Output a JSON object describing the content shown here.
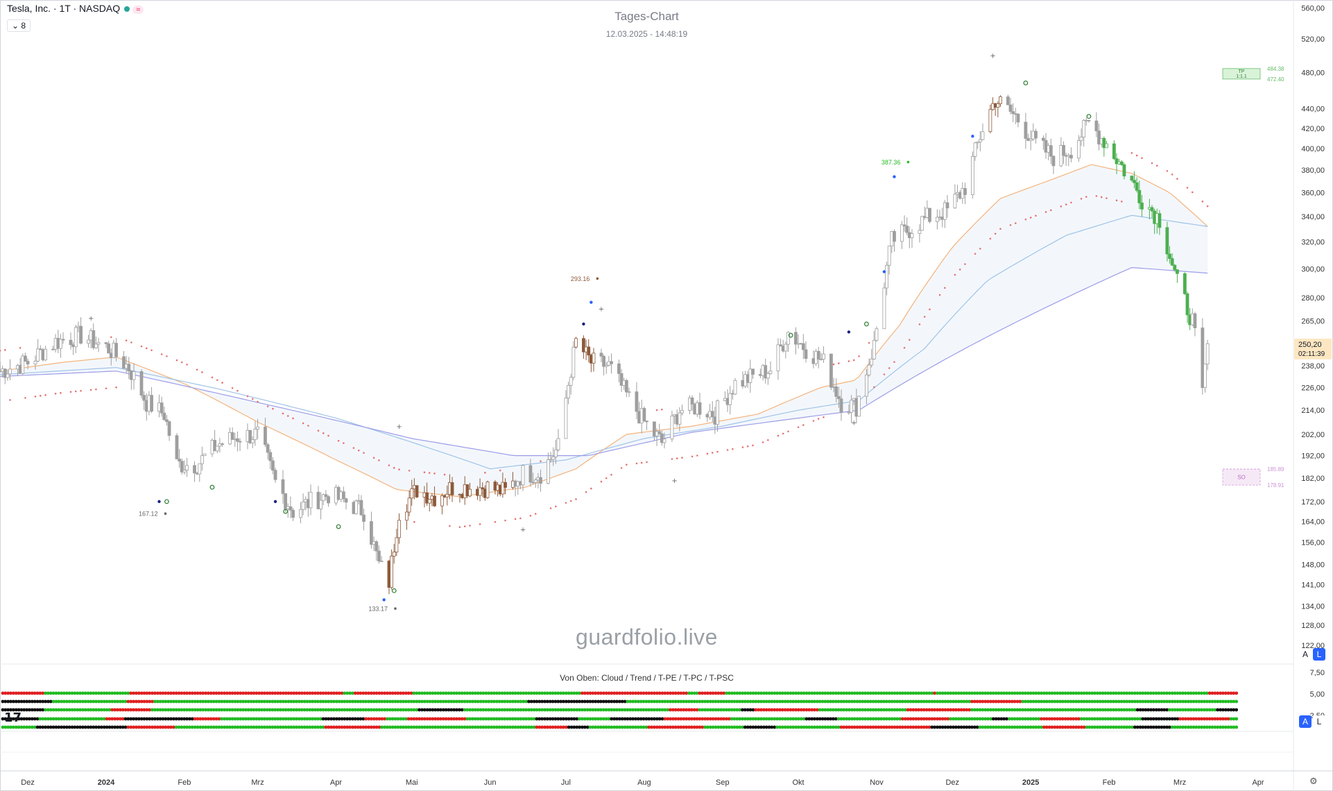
{
  "header": {
    "symbol": "Tesla, Inc. · 1T · NASDAQ",
    "badge": "≈",
    "indicator_count": "8"
  },
  "title": "Tages-Chart",
  "subtitle": "12.03.2025 - 14:48:19",
  "watermark": "guardfolio.live",
  "panel_title": "Von Oben: Cloud / Trend / T-PE / T-PC / T-PSC",
  "logo": "17",
  "scale_buttons": {
    "a": "A",
    "l": "L"
  },
  "colors": {
    "candle_neutral": "#9e9e9e",
    "candle_up_highlight": "#4caf50",
    "candle_down_highlight": "#8d5a3b",
    "candle_red": "#c62828",
    "ema_fast": "#f5b37b",
    "ema_mid": "#9fc3e6",
    "ema_slow": "#9c9ce8",
    "trail_dots": "#e57373",
    "dot_green": "#22bb22",
    "dot_red": "#e02020",
    "dot_black": "#111111"
  },
  "chart_data": {
    "type": "candlestick",
    "title": "Tages-Chart",
    "subtitle": "12.03.2025 - 14:48:19",
    "y_axis_labels": [
      "560,00",
      "520,00",
      "480,00",
      "440,00",
      "420,00",
      "400,00",
      "380,00",
      "360,00",
      "340,00",
      "320,00",
      "300,00",
      "280,00",
      "265,00",
      "238,00",
      "226,00",
      "214,00",
      "202,00",
      "192,00",
      "182,00",
      "172,00",
      "164,00",
      "156,00",
      "148,00",
      "141,00",
      "134,00",
      "128,00",
      "122,00"
    ],
    "x_axis_labels": [
      "Dez",
      "2024",
      "Feb",
      "Mrz",
      "Apr",
      "Mai",
      "Jun",
      "Jul",
      "Aug",
      "Sep",
      "Okt",
      "Nov",
      "Dez",
      "2025",
      "Feb",
      "Mrz",
      "Apr"
    ],
    "ylim": [
      118,
      565
    ],
    "x_range": [
      "2023-11-20",
      "2025-04-15"
    ],
    "price_scale": "log",
    "last_price": {
      "value": "250,20",
      "countdown": "02:11:39"
    },
    "annotations": [
      {
        "label": "167.12",
        "date": "2024-01-22",
        "value": 167.12
      },
      {
        "label": "133.17",
        "date": "2024-04-22",
        "value": 133.17
      },
      {
        "label": "293.16",
        "date": "2024-07-11",
        "value": 293.16
      },
      {
        "label": "387.36",
        "date": "2024-11-11",
        "value": 387.36
      }
    ],
    "zone_tp": {
      "label": "TP",
      "sub": "1:1.1",
      "upper": "484.38",
      "lower": "472.40"
    },
    "zone_sl": {
      "label": "SO",
      "upper": "185.89",
      "lower": "178.91"
    },
    "subpanel": {
      "y_axis_labels": [
        "7,50",
        "5,00",
        "2,50"
      ],
      "rows": [
        {
          "name": "Cloud",
          "segments": [
            [
              "r",
              16
            ],
            [
              "g",
              32
            ],
            [
              "r",
              80
            ],
            [
              "g",
              4
            ],
            [
              "r",
              22
            ],
            [
              "g",
              63
            ],
            [
              "r",
              40
            ],
            [
              "g",
              4
            ],
            [
              "r",
              10
            ],
            [
              "g",
              78
            ],
            [
              "r",
              1
            ],
            [
              "g",
              102
            ],
            [
              "r",
              24
            ],
            [
              "g",
              6
            ],
            [
              "r",
              13
            ]
          ]
        },
        {
          "name": "Trend",
          "segments": [
            [
              "k",
              19
            ],
            [
              "g",
              28
            ],
            [
              "r",
              10
            ],
            [
              "g",
              140
            ],
            [
              "k",
              37
            ],
            [
              "g",
              46
            ],
            [
              "g",
              83
            ],
            [
              "r",
              19
            ],
            [
              "g",
              86
            ],
            [
              "r",
              1
            ],
            [
              "r",
              0
            ],
            [
              "g",
              2
            ],
            [
              "r",
              0
            ]
          ]
        },
        {
          "name": "T-PE",
          "segments": [
            [
              "k",
              16
            ],
            [
              "g",
              25
            ],
            [
              "r",
              15
            ],
            [
              "g",
              100
            ],
            [
              "k",
              17
            ],
            [
              "g",
              77
            ],
            [
              "r",
              11
            ],
            [
              "g",
              16
            ],
            [
              "k",
              5
            ],
            [
              "r",
              24
            ],
            [
              "g",
              33
            ],
            [
              "r",
              24
            ],
            [
              "g",
              62
            ],
            [
              "k",
              12
            ],
            [
              "g",
              18
            ],
            [
              "k",
              23
            ],
            [
              "g",
              22
            ],
            [
              "k",
              25
            ],
            [
              "g",
              27
            ],
            [
              "k",
              13
            ],
            [
              "g",
              25
            ],
            [
              "k",
              29
            ],
            [
              "r",
              10
            ]
          ]
        },
        {
          "name": "T-PC",
          "segments": [
            [
              "k",
              14
            ],
            [
              "g",
              25
            ],
            [
              "r",
              7
            ],
            [
              "k",
              26
            ],
            [
              "r",
              10
            ],
            [
              "g",
              38
            ],
            [
              "k",
              16
            ],
            [
              "r",
              8
            ],
            [
              "g",
              8
            ],
            [
              "r",
              22
            ],
            [
              "g",
              26
            ],
            [
              "k",
              16
            ],
            [
              "g",
              12
            ],
            [
              "k",
              20
            ],
            [
              "r",
              25
            ],
            [
              "g",
              28
            ],
            [
              "k",
              12
            ],
            [
              "g",
              24
            ],
            [
              "r",
              18
            ],
            [
              "g",
              16
            ],
            [
              "k",
              6
            ],
            [
              "g",
              12
            ],
            [
              "r",
              15
            ],
            [
              "g",
              23
            ],
            [
              "k",
              14
            ],
            [
              "r",
              19
            ],
            [
              "g",
              30
            ],
            [
              "r",
              11
            ],
            [
              "k",
              12
            ],
            [
              "g",
              6
            ],
            [
              "r",
              11
            ]
          ]
        },
        {
          "name": "T-PSC",
          "segments": [
            [
              "g",
              13
            ],
            [
              "k",
              34
            ],
            [
              "r",
              18
            ],
            [
              "g",
              56
            ],
            [
              "r",
              21
            ],
            [
              "g",
              58
            ],
            [
              "r",
              12
            ],
            [
              "k",
              8
            ],
            [
              "g",
              22
            ],
            [
              "r",
              21
            ],
            [
              "g",
              15
            ],
            [
              "k",
              12
            ],
            [
              "g",
              24
            ],
            [
              "r",
              34
            ],
            [
              "k",
              18
            ],
            [
              "g",
              24
            ],
            [
              "r",
              16
            ],
            [
              "g",
              18
            ],
            [
              "k",
              14
            ],
            [
              "g",
              28
            ],
            [
              "r",
              17
            ],
            [
              "k",
              12
            ],
            [
              "g",
              20
            ],
            [
              "r",
              24
            ],
            [
              "g",
              29
            ],
            [
              "k",
              12
            ],
            [
              "r",
              18
            ]
          ]
        }
      ]
    },
    "series": [
      {
        "name": "",
        "ohlc_dates": [
          "2023-11-20",
          "2023-12-01",
          "2023-12-12",
          "2023-12-22",
          "2024-01-02",
          "2024-01-10",
          "2024-01-17",
          "2024-01-24",
          "2024-01-29",
          "2024-02-06",
          "2024-02-14",
          "2024-02-22",
          "2024-03-01",
          "2024-03-08",
          "2024-03-15",
          "2024-03-22",
          "2024-03-29",
          "2024-04-05",
          "2024-04-12",
          "2024-04-18",
          "2024-04-22",
          "2024-04-26",
          "2024-05-03",
          "2024-05-10",
          "2024-05-17",
          "2024-05-24",
          "2024-05-31",
          "2024-06-07",
          "2024-06-14",
          "2024-06-21",
          "2024-06-28",
          "2024-07-05",
          "2024-07-11",
          "2024-07-18",
          "2024-07-25",
          "2024-08-01",
          "2024-08-08",
          "2024-08-15",
          "2024-08-22",
          "2024-08-29",
          "2024-09-06",
          "2024-09-13",
          "2024-09-20",
          "2024-09-27",
          "2024-10-04",
          "2024-10-11",
          "2024-10-18",
          "2024-10-24",
          "2024-10-31",
          "2024-11-07",
          "2024-11-14",
          "2024-11-21",
          "2024-11-29",
          "2024-12-06",
          "2024-12-13",
          "2024-12-18",
          "2024-12-26",
          "2025-01-03",
          "2025-01-10",
          "2025-01-17",
          "2025-01-24",
          "2025-01-31",
          "2025-02-07",
          "2025-02-14",
          "2025-02-21",
          "2025-02-28",
          "2025-03-06",
          "2025-03-10",
          "2025-03-12"
        ],
        "close": [
          235,
          240,
          252,
          256,
          248,
          237,
          218,
          212,
          188,
          188,
          197,
          201,
          202,
          180,
          168,
          172,
          175,
          172,
          168,
          148,
          142,
          168,
          177,
          174,
          178,
          178,
          178,
          176,
          184,
          184,
          196,
          252,
          240,
          238,
          222,
          208,
          198,
          214,
          216,
          212,
          228,
          232,
          236,
          258,
          248,
          240,
          218,
          216,
          250,
          321,
          330,
          339,
          345,
          365,
          420,
          450,
          432,
          405,
          392,
          400,
          425,
          405,
          380,
          355,
          338,
          290,
          265,
          222,
          250
        ]
      }
    ],
    "overlays": [
      {
        "name": "",
        "dates": [
          "2023-11-20",
          "2023-12-15",
          "2024-01-05",
          "2024-02-01",
          "2024-03-01",
          "2024-04-01",
          "2024-04-25",
          "2024-05-20",
          "2024-06-15",
          "2024-07-05",
          "2024-07-25",
          "2024-08-20",
          "2024-09-15",
          "2024-10-10",
          "2024-10-24",
          "2024-11-10",
          "2024-12-01",
          "2024-12-20",
          "2025-01-10",
          "2025-01-25",
          "2025-02-10",
          "2025-02-25",
          "2025-03-12"
        ],
        "values": [
          235,
          240,
          243,
          228,
          208,
          190,
          177,
          174,
          178,
          186,
          202,
          206,
          212,
          226,
          230,
          262,
          316,
          355,
          372,
          385,
          377,
          360,
          332
        ]
      },
      {
        "name": "",
        "dates": [
          "2023-11-20",
          "2024-01-05",
          "2024-02-15",
          "2024-04-01",
          "2024-06-01",
          "2024-07-01",
          "2024-08-01",
          "2024-09-01",
          "2024-10-01",
          "2024-10-25",
          "2024-11-20",
          "2024-12-15",
          "2025-01-15",
          "2025-02-10",
          "2025-03-12"
        ],
        "values": [
          233,
          237,
          225,
          210,
          186,
          190,
          200,
          206,
          214,
          219,
          248,
          292,
          325,
          341,
          332
        ]
      },
      {
        "name": "",
        "dates": [
          "2023-11-20",
          "2024-01-05",
          "2024-03-01",
          "2024-05-01",
          "2024-06-10",
          "2024-07-10",
          "2024-08-20",
          "2024-10-01",
          "2024-10-25",
          "2024-12-01",
          "2025-01-15",
          "2025-02-10",
          "2025-03-12"
        ],
        "values": [
          232,
          235,
          218,
          200,
          192,
          192,
          203,
          210,
          214,
          244,
          280,
          301,
          297
        ]
      }
    ]
  }
}
